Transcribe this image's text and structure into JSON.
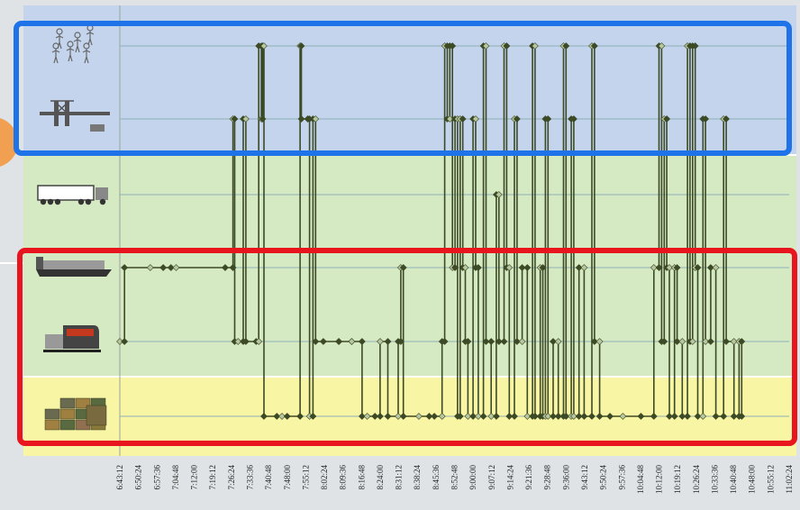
{
  "chart_data": {
    "type": "line",
    "title": "",
    "xlabel": "",
    "ylabel": "",
    "x_ticks": [
      "6:43:12",
      "6:50:24",
      "6:57:36",
      "7:04:48",
      "7:12:00",
      "7:19:12",
      "7:26:24",
      "7:33:36",
      "7:40:48",
      "7:48:00",
      "7:55:12",
      "8:02:24",
      "8:09:36",
      "8:16:48",
      "8:24:00",
      "8:31:12",
      "8:38:24",
      "8:45:36",
      "8:52:48",
      "9:00:00",
      "9:07:12",
      "9:14:24",
      "9:21:36",
      "9:28:48",
      "9:36:00",
      "9:43:12",
      "9:50:24",
      "9:57:36",
      "10:04:48",
      "10:12:00",
      "10:19:12",
      "10:26:24",
      "10:33:36",
      "10:40:48",
      "10:48:00",
      "10:55:12",
      "11:02:24"
    ],
    "xlim": [
      "6:43:12",
      "11:02:24"
    ],
    "lanes": [
      {
        "key": "people",
        "icon": "people-icon",
        "value": 6
      },
      {
        "key": "crane",
        "icon": "crane-icon",
        "value": 5
      },
      {
        "key": "truck",
        "icon": "truck-icon",
        "value": 4
      },
      {
        "key": "barge",
        "icon": "barge-icon",
        "value": 3
      },
      {
        "key": "train",
        "icon": "train-icon",
        "value": 2
      },
      {
        "key": "containers",
        "icon": "containers-icon",
        "value": 1
      }
    ],
    "ylim": [
      1,
      6
    ],
    "zones": [
      {
        "name": "blue",
        "lanes": [
          6,
          5
        ],
        "color": "#c3d4ec"
      },
      {
        "name": "green",
        "lanes": [
          4,
          2
        ],
        "color": "#d5e9c3"
      },
      {
        "name": "yellow",
        "lanes": [
          1,
          1
        ],
        "color": "#f8f5a4"
      }
    ],
    "highlight_boxes": [
      {
        "lanes": [
          6,
          5
        ],
        "color": "#1e73e8"
      },
      {
        "lanes": [
          3,
          1
        ],
        "color": "#e8141e"
      }
    ],
    "line_color": "#3d4a26",
    "marker_light": "#b7c7a0",
    "series": [
      {
        "points": [
          [
            "6:43:12",
            2
          ],
          [
            "6:45:00",
            2
          ],
          [
            "6:45:00",
            3
          ],
          [
            "6:55:00",
            3
          ],
          [
            "7:00:00",
            3
          ],
          [
            "7:03:00",
            3
          ],
          [
            "7:05:00",
            3
          ],
          [
            "7:24:00",
            3
          ],
          [
            "7:27:00",
            3
          ],
          [
            "7:27:00",
            5
          ],
          [
            "7:27:40",
            5
          ],
          [
            "7:27:40",
            2
          ],
          [
            "7:29:00",
            2
          ],
          [
            "7:31:00",
            2
          ],
          [
            "7:31:00",
            5
          ],
          [
            "7:32:00",
            5
          ],
          [
            "7:32:00",
            2
          ],
          [
            "7:36:00",
            2
          ],
          [
            "7:37:00",
            2
          ],
          [
            "7:37:00",
            6
          ],
          [
            "7:38:00",
            6
          ],
          [
            "7:38:00",
            5
          ],
          [
            "7:38:30",
            5
          ],
          [
            "7:38:30",
            6
          ],
          [
            "7:39:00",
            6
          ],
          [
            "7:39:00",
            1
          ],
          [
            "7:44:00",
            1
          ],
          [
            "7:46:00",
            1
          ],
          [
            "7:48:00",
            1
          ],
          [
            "7:53:00",
            1
          ],
          [
            "7:53:00",
            6
          ],
          [
            "7:53:30",
            6
          ],
          [
            "7:53:30",
            5
          ],
          [
            "7:56:00",
            5
          ],
          [
            "7:56:00",
            5
          ],
          [
            "7:56:40",
            5
          ],
          [
            "7:56:40",
            1
          ],
          [
            "7:58:00",
            1
          ],
          [
            "7:58:00",
            5
          ],
          [
            "7:59:00",
            5
          ],
          [
            "7:59:00",
            2
          ],
          [
            "8:02:00",
            2
          ],
          [
            "8:08:00",
            2
          ],
          [
            "8:08:00",
            2
          ],
          [
            "8:13:00",
            2
          ],
          [
            "8:13:00",
            2
          ],
          [
            "8:17:00",
            2
          ],
          [
            "8:17:00",
            1
          ],
          [
            "8:19:00",
            1
          ],
          [
            "8:22:00",
            1
          ],
          [
            "8:24:00",
            1
          ],
          [
            "8:24:00",
            2
          ],
          [
            "8:27:00",
            2
          ],
          [
            "8:27:00",
            1
          ],
          [
            "8:31:00",
            1
          ],
          [
            "8:31:00",
            2
          ],
          [
            "8:32:00",
            2
          ],
          [
            "8:32:00",
            3
          ],
          [
            "8:33:00",
            3
          ],
          [
            "8:33:00",
            1
          ],
          [
            "8:39:00",
            1
          ],
          [
            "8:43:00",
            1
          ],
          [
            "8:45:00",
            1
          ],
          [
            "8:48:00",
            1
          ],
          [
            "8:48:00",
            2
          ],
          [
            "8:49:00",
            2
          ],
          [
            "8:49:00",
            6
          ],
          [
            "8:50:00",
            6
          ],
          [
            "8:50:00",
            5
          ],
          [
            "8:51:00",
            5
          ],
          [
            "8:51:00",
            6
          ],
          [
            "8:52:00",
            6
          ],
          [
            "8:52:00",
            3
          ],
          [
            "8:53:00",
            3
          ],
          [
            "8:53:00",
            5
          ],
          [
            "8:54:00",
            5
          ],
          [
            "8:54:00",
            1
          ],
          [
            "8:55:00",
            1
          ],
          [
            "8:55:00",
            5
          ],
          [
            "8:56:00",
            5
          ],
          [
            "8:56:00",
            3
          ],
          [
            "8:57:00",
            3
          ],
          [
            "8:57:00",
            2
          ],
          [
            "8:58:00",
            2
          ],
          [
            "8:58:00",
            1
          ],
          [
            "9:00:00",
            1
          ],
          [
            "9:00:00",
            5
          ],
          [
            "9:01:00",
            5
          ],
          [
            "9:01:00",
            3
          ],
          [
            "9:02:00",
            3
          ],
          [
            "9:02:00",
            1
          ],
          [
            "9:04:00",
            1
          ],
          [
            "9:04:00",
            6
          ],
          [
            "9:05:00",
            6
          ],
          [
            "9:05:00",
            2
          ],
          [
            "9:07:00",
            2
          ],
          [
            "9:07:00",
            1
          ],
          [
            "9:09:00",
            1
          ],
          [
            "9:09:00",
            4
          ],
          [
            "9:10:00",
            4
          ],
          [
            "9:10:00",
            2
          ],
          [
            "9:12:00",
            2
          ],
          [
            "9:12:00",
            6
          ],
          [
            "9:13:00",
            6
          ],
          [
            "9:13:00",
            3
          ],
          [
            "9:14:00",
            3
          ],
          [
            "9:14:00",
            1
          ],
          [
            "9:16:00",
            1
          ],
          [
            "9:16:00",
            5
          ],
          [
            "9:17:00",
            5
          ],
          [
            "9:17:00",
            2
          ],
          [
            "9:19:00",
            2
          ],
          [
            "9:19:00",
            3
          ],
          [
            "9:21:00",
            3
          ],
          [
            "9:21:00",
            1
          ],
          [
            "9:23:00",
            1
          ],
          [
            "9:23:00",
            6
          ],
          [
            "9:24:00",
            6
          ],
          [
            "9:24:00",
            1
          ],
          [
            "9:26:00",
            1
          ],
          [
            "9:26:00",
            3
          ],
          [
            "9:27:00",
            3
          ],
          [
            "9:27:00",
            1
          ],
          [
            "9:28:00",
            1
          ],
          [
            "9:28:00",
            5
          ],
          [
            "9:29:00",
            5
          ],
          [
            "9:29:00",
            1
          ],
          [
            "9:31:00",
            1
          ],
          [
            "9:31:00",
            2
          ],
          [
            "9:33:00",
            2
          ],
          [
            "9:33:00",
            1
          ],
          [
            "9:35:00",
            1
          ],
          [
            "9:35:00",
            6
          ],
          [
            "9:36:00",
            6
          ],
          [
            "9:36:00",
            1
          ],
          [
            "9:38:00",
            1
          ],
          [
            "9:38:00",
            5
          ],
          [
            "9:39:00",
            5
          ],
          [
            "9:39:00",
            1
          ],
          [
            "9:41:00",
            1
          ],
          [
            "9:41:00",
            3
          ],
          [
            "9:43:00",
            3
          ],
          [
            "9:43:00",
            1
          ],
          [
            "9:46:00",
            1
          ],
          [
            "9:46:00",
            6
          ],
          [
            "9:47:00",
            6
          ],
          [
            "9:47:00",
            2
          ],
          [
            "9:49:00",
            2
          ],
          [
            "9:49:00",
            1
          ],
          [
            "9:53:00",
            1
          ],
          [
            "9:58:00",
            1
          ],
          [
            "10:05:00",
            1
          ],
          [
            "10:10:00",
            1
          ],
          [
            "10:10:00",
            3
          ],
          [
            "10:12:00",
            3
          ],
          [
            "10:12:00",
            6
          ],
          [
            "10:13:00",
            6
          ],
          [
            "10:13:00",
            2
          ],
          [
            "10:14:00",
            2
          ],
          [
            "10:14:00",
            5
          ],
          [
            "10:15:00",
            5
          ],
          [
            "10:15:00",
            3
          ],
          [
            "10:16:00",
            3
          ],
          [
            "10:16:00",
            1
          ],
          [
            "10:18:00",
            1
          ],
          [
            "10:18:00",
            3
          ],
          [
            "10:19:00",
            3
          ],
          [
            "10:19:00",
            2
          ],
          [
            "10:21:00",
            2
          ],
          [
            "10:21:00",
            1
          ],
          [
            "10:23:00",
            1
          ],
          [
            "10:23:00",
            6
          ],
          [
            "10:24:00",
            6
          ],
          [
            "10:24:00",
            2
          ],
          [
            "10:25:00",
            2
          ],
          [
            "10:25:00",
            6
          ],
          [
            "10:26:00",
            6
          ],
          [
            "10:26:00",
            3
          ],
          [
            "10:27:00",
            3
          ],
          [
            "10:27:00",
            1
          ],
          [
            "10:29:00",
            1
          ],
          [
            "10:29:00",
            5
          ],
          [
            "10:30:00",
            5
          ],
          [
            "10:30:00",
            2
          ],
          [
            "10:32:00",
            2
          ],
          [
            "10:32:00",
            3
          ],
          [
            "10:34:00",
            3
          ],
          [
            "10:34:00",
            1
          ],
          [
            "10:37:00",
            1
          ],
          [
            "10:37:00",
            5
          ],
          [
            "10:38:00",
            5
          ],
          [
            "10:38:00",
            2
          ],
          [
            "10:41:00",
            2
          ],
          [
            "10:41:00",
            1
          ],
          [
            "10:43:00",
            1
          ],
          [
            "10:43:00",
            2
          ],
          [
            "10:44:00",
            2
          ],
          [
            "10:44:00",
            1
          ]
        ]
      }
    ]
  }
}
